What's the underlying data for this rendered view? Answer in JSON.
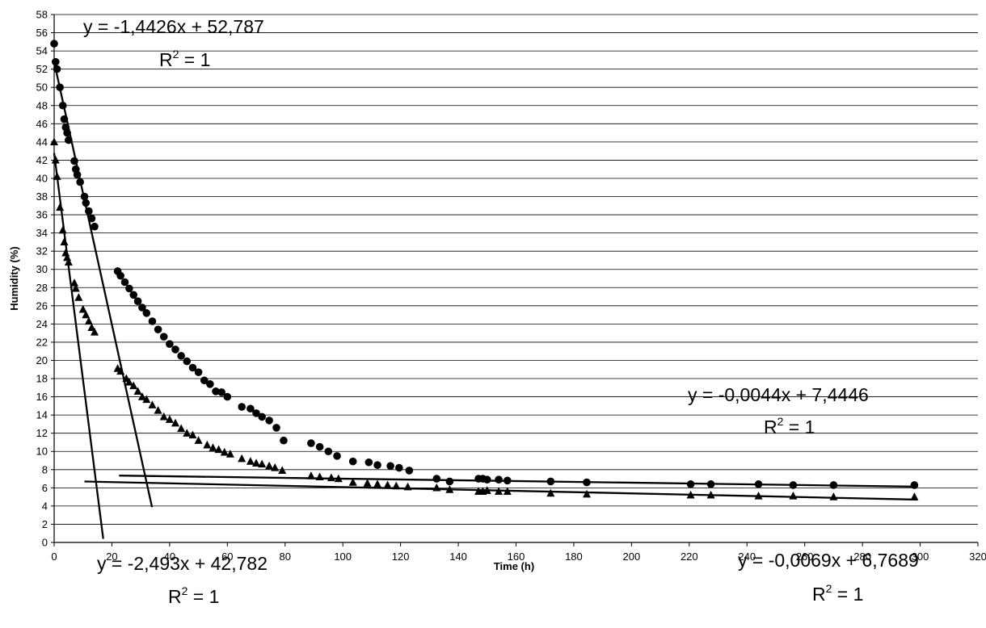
{
  "chart_data": {
    "type": "scatter",
    "title": "",
    "xlabel": "Time (h)",
    "ylabel": "Humidity (%)",
    "xlim": [
      0,
      320
    ],
    "ylim": [
      0,
      58
    ],
    "x_ticks": [
      0,
      20,
      40,
      60,
      80,
      100,
      120,
      140,
      160,
      180,
      200,
      220,
      240,
      260,
      280,
      300,
      320
    ],
    "y_ticks": [
      0,
      2,
      4,
      6,
      8,
      10,
      12,
      14,
      16,
      18,
      20,
      22,
      24,
      26,
      28,
      30,
      32,
      34,
      36,
      38,
      40,
      42,
      44,
      46,
      48,
      50,
      52,
      54,
      56,
      58
    ],
    "x_tick_labels": [
      "0",
      "20",
      "40",
      "60",
      "80",
      "100",
      "120",
      "140",
      "160",
      "180",
      "200",
      "220",
      "240",
      "260",
      "280",
      "300",
      "320"
    ],
    "y_tick_labels": [
      "0",
      "2",
      "4",
      "6",
      "8",
      "10",
      "12",
      "14",
      "16",
      "18",
      "20",
      "22",
      "24",
      "26",
      "28",
      "30",
      "32",
      "34",
      "36",
      "38",
      "40",
      "42",
      "44",
      "46",
      "48",
      "50",
      "52",
      "54",
      "56",
      "58"
    ],
    "horizontal_grid": true,
    "vertical_grid": false,
    "series": [
      {
        "marker": "circle",
        "color": "#000000",
        "x": [
          0,
          0.5,
          1,
          2,
          3,
          3.5,
          4,
          4.5,
          5,
          7,
          7.5,
          8,
          9,
          10.5,
          11,
          12,
          13,
          14,
          22,
          23,
          24.5,
          26,
          27.5,
          29,
          30.5,
          32,
          34,
          36,
          38,
          40,
          42,
          44,
          46,
          48,
          50,
          52,
          54,
          56,
          58,
          60,
          65,
          68,
          70,
          72,
          74.5,
          77,
          79.5,
          89,
          92,
          95,
          98,
          103.5,
          109,
          112,
          116.5,
          119.5,
          123,
          132.5,
          137,
          147,
          148.5,
          150,
          154,
          157,
          172,
          184.5,
          220.5,
          227.5,
          244,
          256,
          270,
          298
        ],
        "y": [
          54.8,
          52.8,
          52,
          50,
          48,
          46.5,
          45.6,
          45,
          44.2,
          41.9,
          41,
          40.4,
          39.6,
          38,
          37.3,
          36.4,
          35.6,
          34.7,
          29.8,
          29.3,
          28.6,
          27.9,
          27.2,
          26.5,
          25.8,
          25.2,
          24.3,
          23.4,
          22.6,
          21.8,
          21.2,
          20.5,
          19.9,
          19.2,
          18.7,
          17.8,
          17.4,
          16.6,
          16.5,
          16.0,
          14.9,
          14.7,
          14.2,
          13.8,
          13.4,
          12.6,
          11.2,
          10.9,
          10.5,
          10.0,
          9.5,
          8.9,
          8.8,
          8.5,
          8.4,
          8.2,
          7.9,
          7.0,
          6.7,
          7.0,
          7.0,
          6.9,
          6.9,
          6.8,
          6.7,
          6.6,
          6.4,
          6.4,
          6.4,
          6.3,
          6.3,
          6.3
        ]
      },
      {
        "marker": "triangle",
        "color": "#000000",
        "x": [
          0,
          0.5,
          1,
          2,
          3,
          3.5,
          4,
          4.5,
          5,
          7,
          7.5,
          8.5,
          10,
          11,
          12,
          13,
          14,
          22,
          23,
          25,
          26,
          27.5,
          29,
          30.5,
          32,
          34,
          36,
          38,
          40,
          42,
          44,
          46,
          48,
          50,
          53,
          55,
          57,
          59,
          61,
          65,
          68,
          70,
          72,
          74.5,
          76.5,
          79,
          89,
          92,
          96,
          98.5,
          103.5,
          108.5,
          112,
          115.5,
          118.5,
          122.5,
          132.5,
          137,
          147,
          148.5,
          150,
          154,
          157,
          172,
          184.5,
          220.5,
          227.5,
          244,
          256,
          270,
          298
        ],
        "y": [
          44,
          42,
          40.2,
          36.8,
          34.3,
          33,
          31.8,
          31.3,
          30.8,
          28.5,
          27.9,
          26.9,
          25.6,
          25,
          24.3,
          23.6,
          23.1,
          19.1,
          18.8,
          18.0,
          17.6,
          17.2,
          16.6,
          16.0,
          15.7,
          15.1,
          14.5,
          13.8,
          13.5,
          13.1,
          12.5,
          12.0,
          11.8,
          11.2,
          10.7,
          10.4,
          10.2,
          9.9,
          9.7,
          9.2,
          8.9,
          8.7,
          8.6,
          8.4,
          8.2,
          7.9,
          7.3,
          7.2,
          7.1,
          7.0,
          6.6,
          6.5,
          6.4,
          6.3,
          6.2,
          6.1,
          6.0,
          5.8,
          5.6,
          5.6,
          5.7,
          5.6,
          5.6,
          5.4,
          5.3,
          5.2,
          5.2,
          5.1,
          5.1,
          5.0,
          5.0
        ]
      }
    ],
    "trendlines": [
      {
        "equation": "y = -1,4426x + 52,787",
        "r2_prefix": "R",
        "r2_exp": "2",
        "r2_suffix": " = 1",
        "slope": -1.4426,
        "intercept": 52.787,
        "x_range": [
          0,
          33.9
        ]
      },
      {
        "equation": "y = -2,493x + 42,782",
        "r2_prefix": "R",
        "r2_exp": "2",
        "r2_suffix": " = 1",
        "slope": -2.493,
        "intercept": 42.782,
        "x_range": [
          0,
          17
        ]
      },
      {
        "equation": "y = -0,0044x + 7,4446",
        "r2_prefix": "R",
        "r2_exp": "2",
        "r2_suffix": " = 1",
        "slope": -0.0044,
        "intercept": 7.4446,
        "x_range": [
          22.5,
          299
        ]
      },
      {
        "equation": "y = -0,0069x + 6,7689",
        "r2_prefix": "R",
        "r2_exp": "2",
        "r2_suffix": " = 1",
        "slope": -0.0069,
        "intercept": 6.7689,
        "x_range": [
          10.5,
          299
        ]
      }
    ]
  }
}
